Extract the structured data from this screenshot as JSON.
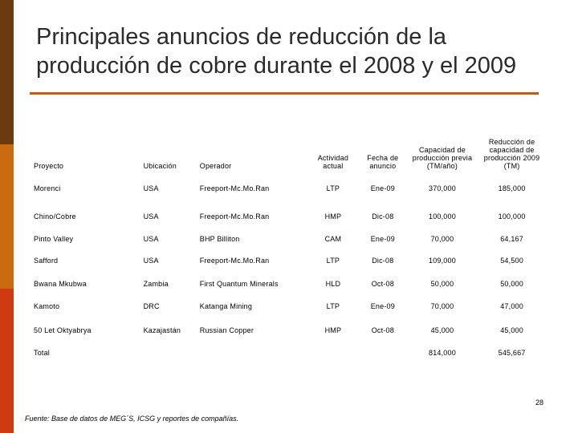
{
  "title_line1": "Principales anuncios de reducción de la",
  "title_line2": "producción de cobre durante el 2008 y el 2009",
  "colors": {
    "accent_rule": "#c85a10",
    "bar_top": "#6b3a10",
    "bar_mid": "#cc6a10",
    "bar_bottom": "#d03a10"
  },
  "table": {
    "headers": {
      "proyecto": "Proyecto",
      "ubicacion": "Ubicación",
      "operador": "Operador",
      "actividad": "Actividad actual",
      "fecha": "Fecha de anuncio",
      "capacidad": "Capacidad de producción previa (TM/año)",
      "reduccion": "Reducción de capacidad de producción 2009 (TM)"
    },
    "rows": [
      {
        "proyecto": "Morenci",
        "ubicacion": "USA",
        "operador": "Freeport-Mc.Mo.Ran",
        "actividad": "LTP",
        "fecha": "Ene-09",
        "capacidad": "370,000",
        "reduccion": "185,000"
      },
      {
        "proyecto": "Chino/Cobre",
        "ubicacion": "USA",
        "operador": "Freeport-Mc.Mo.Ran",
        "actividad": "HMP",
        "fecha": "Dic-08",
        "capacidad": "100,000",
        "reduccion": "100,000"
      },
      {
        "proyecto": "Pinto Valley",
        "ubicacion": "USA",
        "operador": "BHP Billiton",
        "actividad": "CAM",
        "fecha": "Ene-09",
        "capacidad": "70,000",
        "reduccion": "64,167"
      },
      {
        "proyecto": "Safford",
        "ubicacion": "USA",
        "operador": "Freeport-Mc.Mo.Ran",
        "actividad": "LTP",
        "fecha": "Dic-08",
        "capacidad": "109,000",
        "reduccion": "54,500"
      },
      {
        "proyecto": "Bwana Mkubwa",
        "ubicacion": "Zambia",
        "operador": "First Quantum Minerals",
        "actividad": "HLD",
        "fecha": "Oct-08",
        "capacidad": "50,000",
        "reduccion": "50,000"
      },
      {
        "proyecto": "Kamoto",
        "ubicacion": "DRC",
        "operador": "Katanga Mining",
        "actividad": "LTP",
        "fecha": "Ene-09",
        "capacidad": "70,000",
        "reduccion": "47,000"
      },
      {
        "proyecto": "50 Let Oktyabrya",
        "ubicacion": "Kazajastán",
        "operador": "Russian Copper",
        "actividad": "HMP",
        "fecha": "Oct-08",
        "capacidad": "45,000",
        "reduccion": "45,000"
      }
    ],
    "total": {
      "label": "Total",
      "capacidad": "814,000",
      "reduccion": "545,667"
    }
  },
  "page_number": "28",
  "source": "Fuente: Base de datos de MEG´S, ICSG y reportes de compañías."
}
